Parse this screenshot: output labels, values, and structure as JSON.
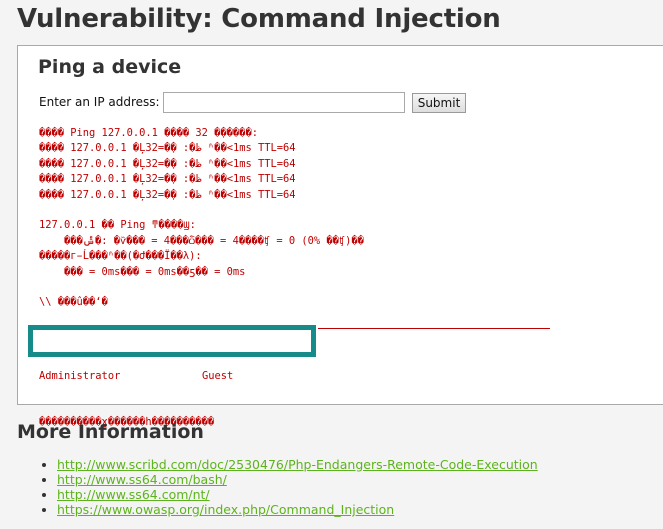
{
  "page": {
    "title": "Vulnerability: Command Injection"
  },
  "ping": {
    "heading": "Ping a device",
    "ip_label": "Enter an IP address:",
    "ip_value": "",
    "submit_label": "Submit"
  },
  "output": {
    "lines": [
      "���� Ping 127.0.0.1 ���� 32 �ֽ�����:",
      "���� 127.0.0.1 �Ļظ�: �ֽ�=32 ʱ��<1ms TTL=64",
      "���� 127.0.0.1 �Ļظ�: �ֽ�=32 ʱ��<1ms TTL=64",
      "���� 127.0.0.1 �Ļظ�: �ֽ�=32 ʱ��<1ms TTL=64",
      "���� 127.0.0.1 �Ļظ�: �ֽ�=32 ʱ��<1ms TTL=64",
      "",
      "127.0.0.1 �� Ping ͳ����Ϣ:",
      "    ���ݰ�: �ѷ��� = 4���ѽ��� = 4����ʧ = 0 (0% ��ʧ)��",
      "�����г̵Ĺ���ʱ��(�Ժ���Ϊ��λ):",
      "    ��� = 0ms��� = 0ms��ƽ�� = 0ms",
      "",
      "\\\\ ���û��ʻ�"
    ],
    "users": [
      "Administrator",
      "Guest"
    ],
    "last_line": "����������ɣ������һ����������"
  },
  "more_info": {
    "heading": "More Information",
    "links": [
      "http://www.scribd.com/doc/2530476/Php-Endangers-Remote-Code-Execution",
      "http://www.ss64.com/bash/",
      "http://www.ss64.com/nt/",
      "https://www.owasp.org/index.php/Command_Injection"
    ]
  },
  "colors": {
    "output_text": "#c00000",
    "link": "#5db31d",
    "highlight_border": "#178a8a"
  }
}
